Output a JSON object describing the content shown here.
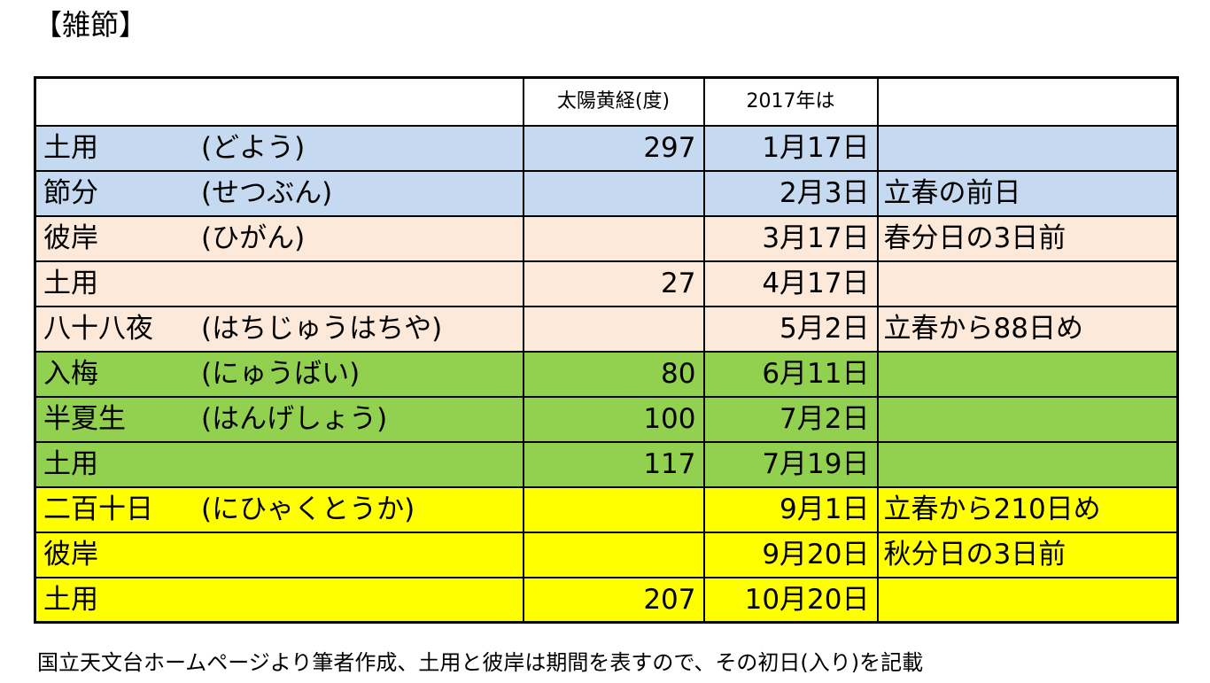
{
  "title": "【雑節】",
  "colors": {
    "blue": "#c5d9f1",
    "peach": "#fde9d9",
    "green": "#92d050",
    "yellow": "#ffff00"
  },
  "table": {
    "headers": [
      "",
      "太陽黄経(度)",
      "2017年は",
      ""
    ],
    "rows": [
      {
        "term": "土用",
        "reading": "(どよう)",
        "longitude": "297",
        "date": "1月17日",
        "note": "",
        "color": "#c5d9f1"
      },
      {
        "term": "節分",
        "reading": "(せつぶん)",
        "longitude": "",
        "date": "2月3日",
        "note": "立春の前日",
        "color": "#c5d9f1"
      },
      {
        "term": "彼岸",
        "reading": "(ひがん)",
        "longitude": "",
        "date": "3月17日",
        "note": "春分日の3日前",
        "color": "#fde9d9"
      },
      {
        "term": "土用",
        "reading": "",
        "longitude": "27",
        "date": "4月17日",
        "note": "",
        "color": "#fde9d9"
      },
      {
        "term": "八十八夜",
        "reading": "(はちじゅうはちや)",
        "longitude": "",
        "date": "5月2日",
        "note": "立春から88日め",
        "color": "#fde9d9"
      },
      {
        "term": "入梅",
        "reading": "(にゅうばい)",
        "longitude": "80",
        "date": "6月11日",
        "note": "",
        "color": "#92d050"
      },
      {
        "term": "半夏生",
        "reading": "(はんげしょう)",
        "longitude": "100",
        "date": "7月2日",
        "note": "",
        "color": "#92d050"
      },
      {
        "term": "土用",
        "reading": "",
        "longitude": "117",
        "date": "7月19日",
        "note": "",
        "color": "#92d050"
      },
      {
        "term": "二百十日",
        "reading": "(にひゃくとうか)",
        "longitude": "",
        "date": "9月1日",
        "note": "立春から210日め",
        "color": "#ffff00"
      },
      {
        "term": "彼岸",
        "reading": "",
        "longitude": "",
        "date": "9月20日",
        "note": "秋分日の3日前",
        "color": "#ffff00"
      },
      {
        "term": "土用",
        "reading": "",
        "longitude": "207",
        "date": "10月20日",
        "note": "",
        "color": "#ffff00"
      }
    ]
  },
  "footnote": "国立天文台ホームページより筆者作成、土用と彼岸は期間を表すので、その初日(入り)を記載"
}
